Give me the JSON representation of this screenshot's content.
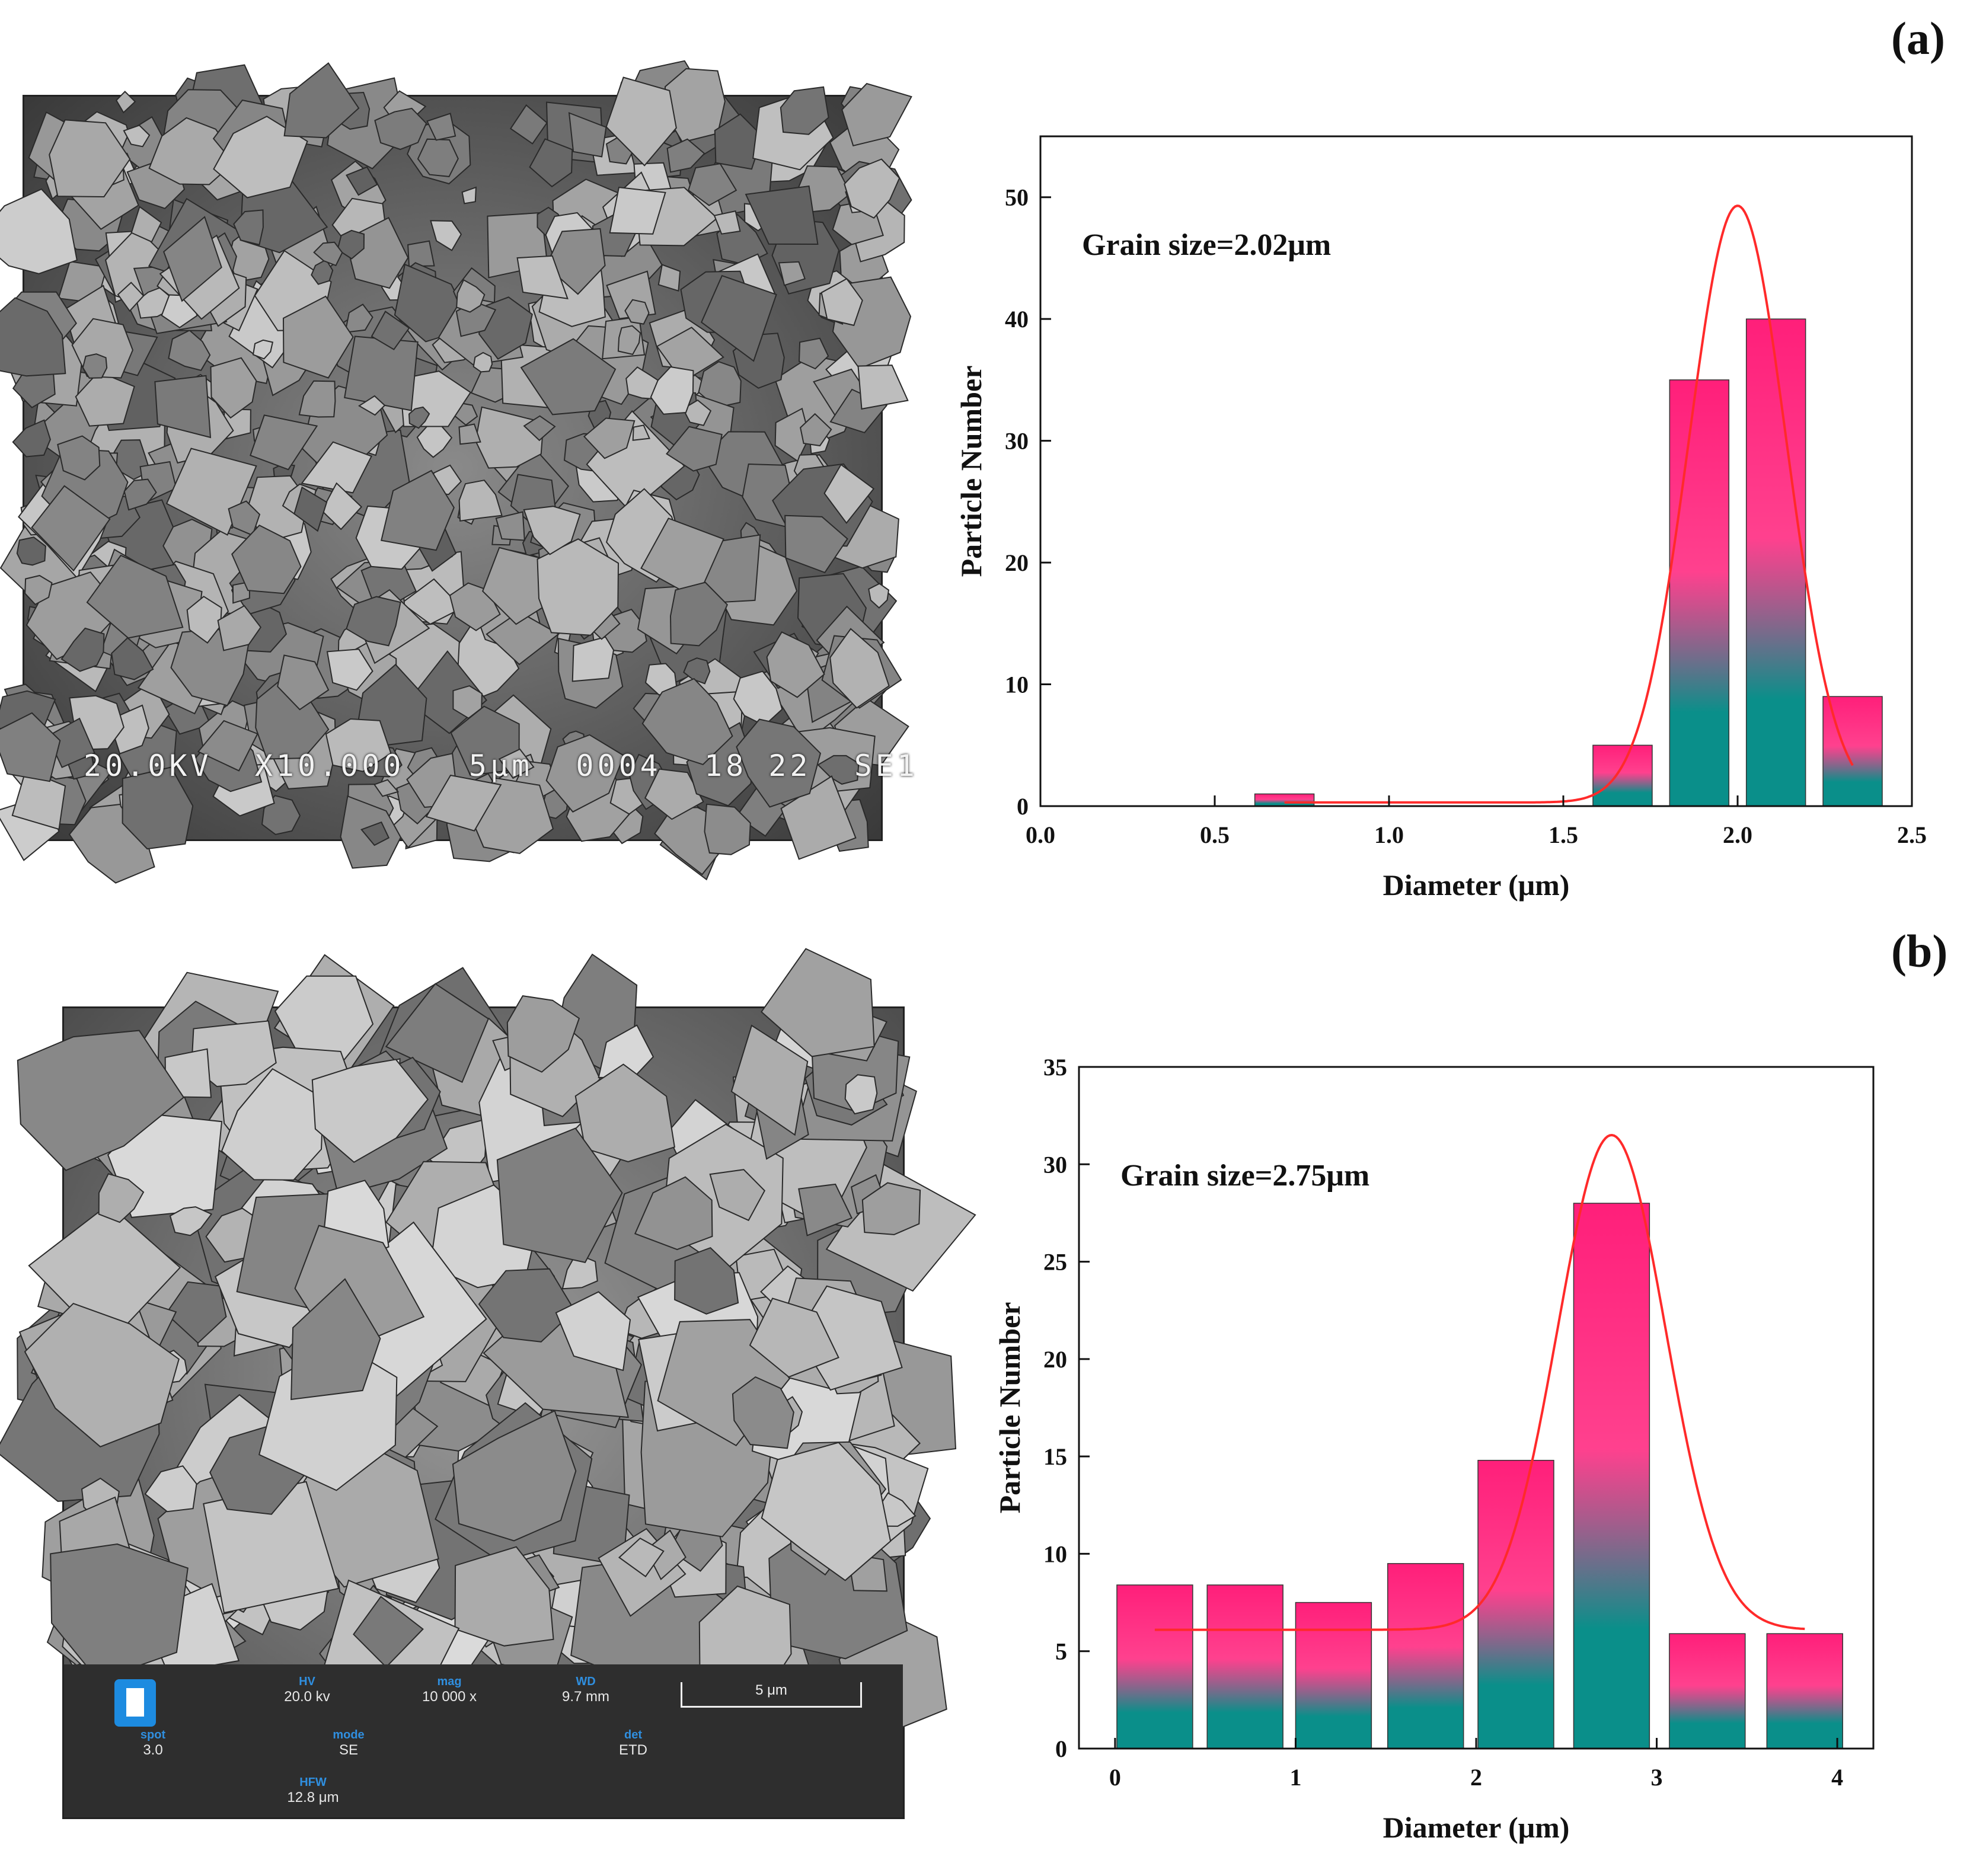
{
  "panels": {
    "a_label": "(a)",
    "b_label": "(b)"
  },
  "sem_a": {
    "caption": "20.0KV  X10.000   5μm  0004  18 22  SE1"
  },
  "sem_b": {
    "info": [
      {
        "title": "HV",
        "value": "20.0 kv"
      },
      {
        "title": "mag",
        "value": "10 000 x"
      },
      {
        "title": "WD",
        "value": "9.7 mm"
      },
      {
        "title": "spot",
        "value": "3.0"
      },
      {
        "title": "mode",
        "value": "SE"
      },
      {
        "title": "det",
        "value": "ETD"
      },
      {
        "title": "HFW",
        "value": "12.8 μm"
      }
    ],
    "scale": "5 μm"
  },
  "colors": {
    "bar_top": "#ff1f7a",
    "bar_bottom": "#0a8f8a",
    "fit_line": "#ff2a2a"
  },
  "chart_data": [
    {
      "type": "bar",
      "panel": "(a)",
      "annotation": "Grain size=2.02μm",
      "xlabel": "Diameter (μm)",
      "ylabel": "Particle Number",
      "xlim": [
        0.0,
        2.5
      ],
      "ylim": [
        0,
        55
      ],
      "xticks": [
        0.0,
        0.5,
        1.0,
        1.5,
        2.0,
        2.5
      ],
      "xtick_labels": [
        "0.0",
        "0.5",
        "1.0",
        "1.5",
        "2.0",
        "2.5"
      ],
      "yticks": [
        0,
        10,
        20,
        30,
        40,
        50
      ],
      "ytick_labels": [
        "0",
        "10",
        "20",
        "30",
        "40",
        "50"
      ],
      "bar_width": 0.17,
      "bars": [
        {
          "x": 0.7,
          "value": 1
        },
        {
          "x": 1.67,
          "value": 5
        },
        {
          "x": 1.89,
          "value": 35
        },
        {
          "x": 2.11,
          "value": 40
        },
        {
          "x": 2.33,
          "value": 9
        }
      ],
      "fit": {
        "type": "gaussian",
        "y0": 0.3,
        "amplitude": 49,
        "center": 2.0,
        "sigma": 0.14,
        "x_range": [
          0.7,
          2.33
        ]
      },
      "grid": false
    },
    {
      "type": "bar",
      "panel": "(b)",
      "annotation": "Grain size=2.75μm",
      "xlabel": "Diameter (μm)",
      "ylabel": "Particle Number",
      "xlim": [
        -0.2,
        4.2
      ],
      "ylim": [
        0,
        35
      ],
      "xticks": [
        0,
        1,
        2,
        3,
        4
      ],
      "xtick_labels": [
        "0",
        "1",
        "2",
        "3",
        "4"
      ],
      "yticks": [
        0,
        5,
        10,
        15,
        20,
        25,
        30,
        35
      ],
      "ytick_labels": [
        "0",
        "5",
        "10",
        "15",
        "20",
        "25",
        "30",
        "35"
      ],
      "bar_width": 0.42,
      "bars": [
        {
          "x": 0.22,
          "value": 8.4
        },
        {
          "x": 0.72,
          "value": 8.4
        },
        {
          "x": 1.21,
          "value": 7.5
        },
        {
          "x": 1.72,
          "value": 9.5
        },
        {
          "x": 2.22,
          "value": 14.8
        },
        {
          "x": 2.75,
          "value": 28
        },
        {
          "x": 3.28,
          "value": 5.9
        },
        {
          "x": 3.82,
          "value": 5.9
        }
      ],
      "fit": {
        "type": "gaussian",
        "y0": 6.1,
        "amplitude": 25.4,
        "center": 2.75,
        "sigma": 0.3,
        "x_range": [
          0.22,
          3.82
        ]
      },
      "grid": false
    }
  ]
}
